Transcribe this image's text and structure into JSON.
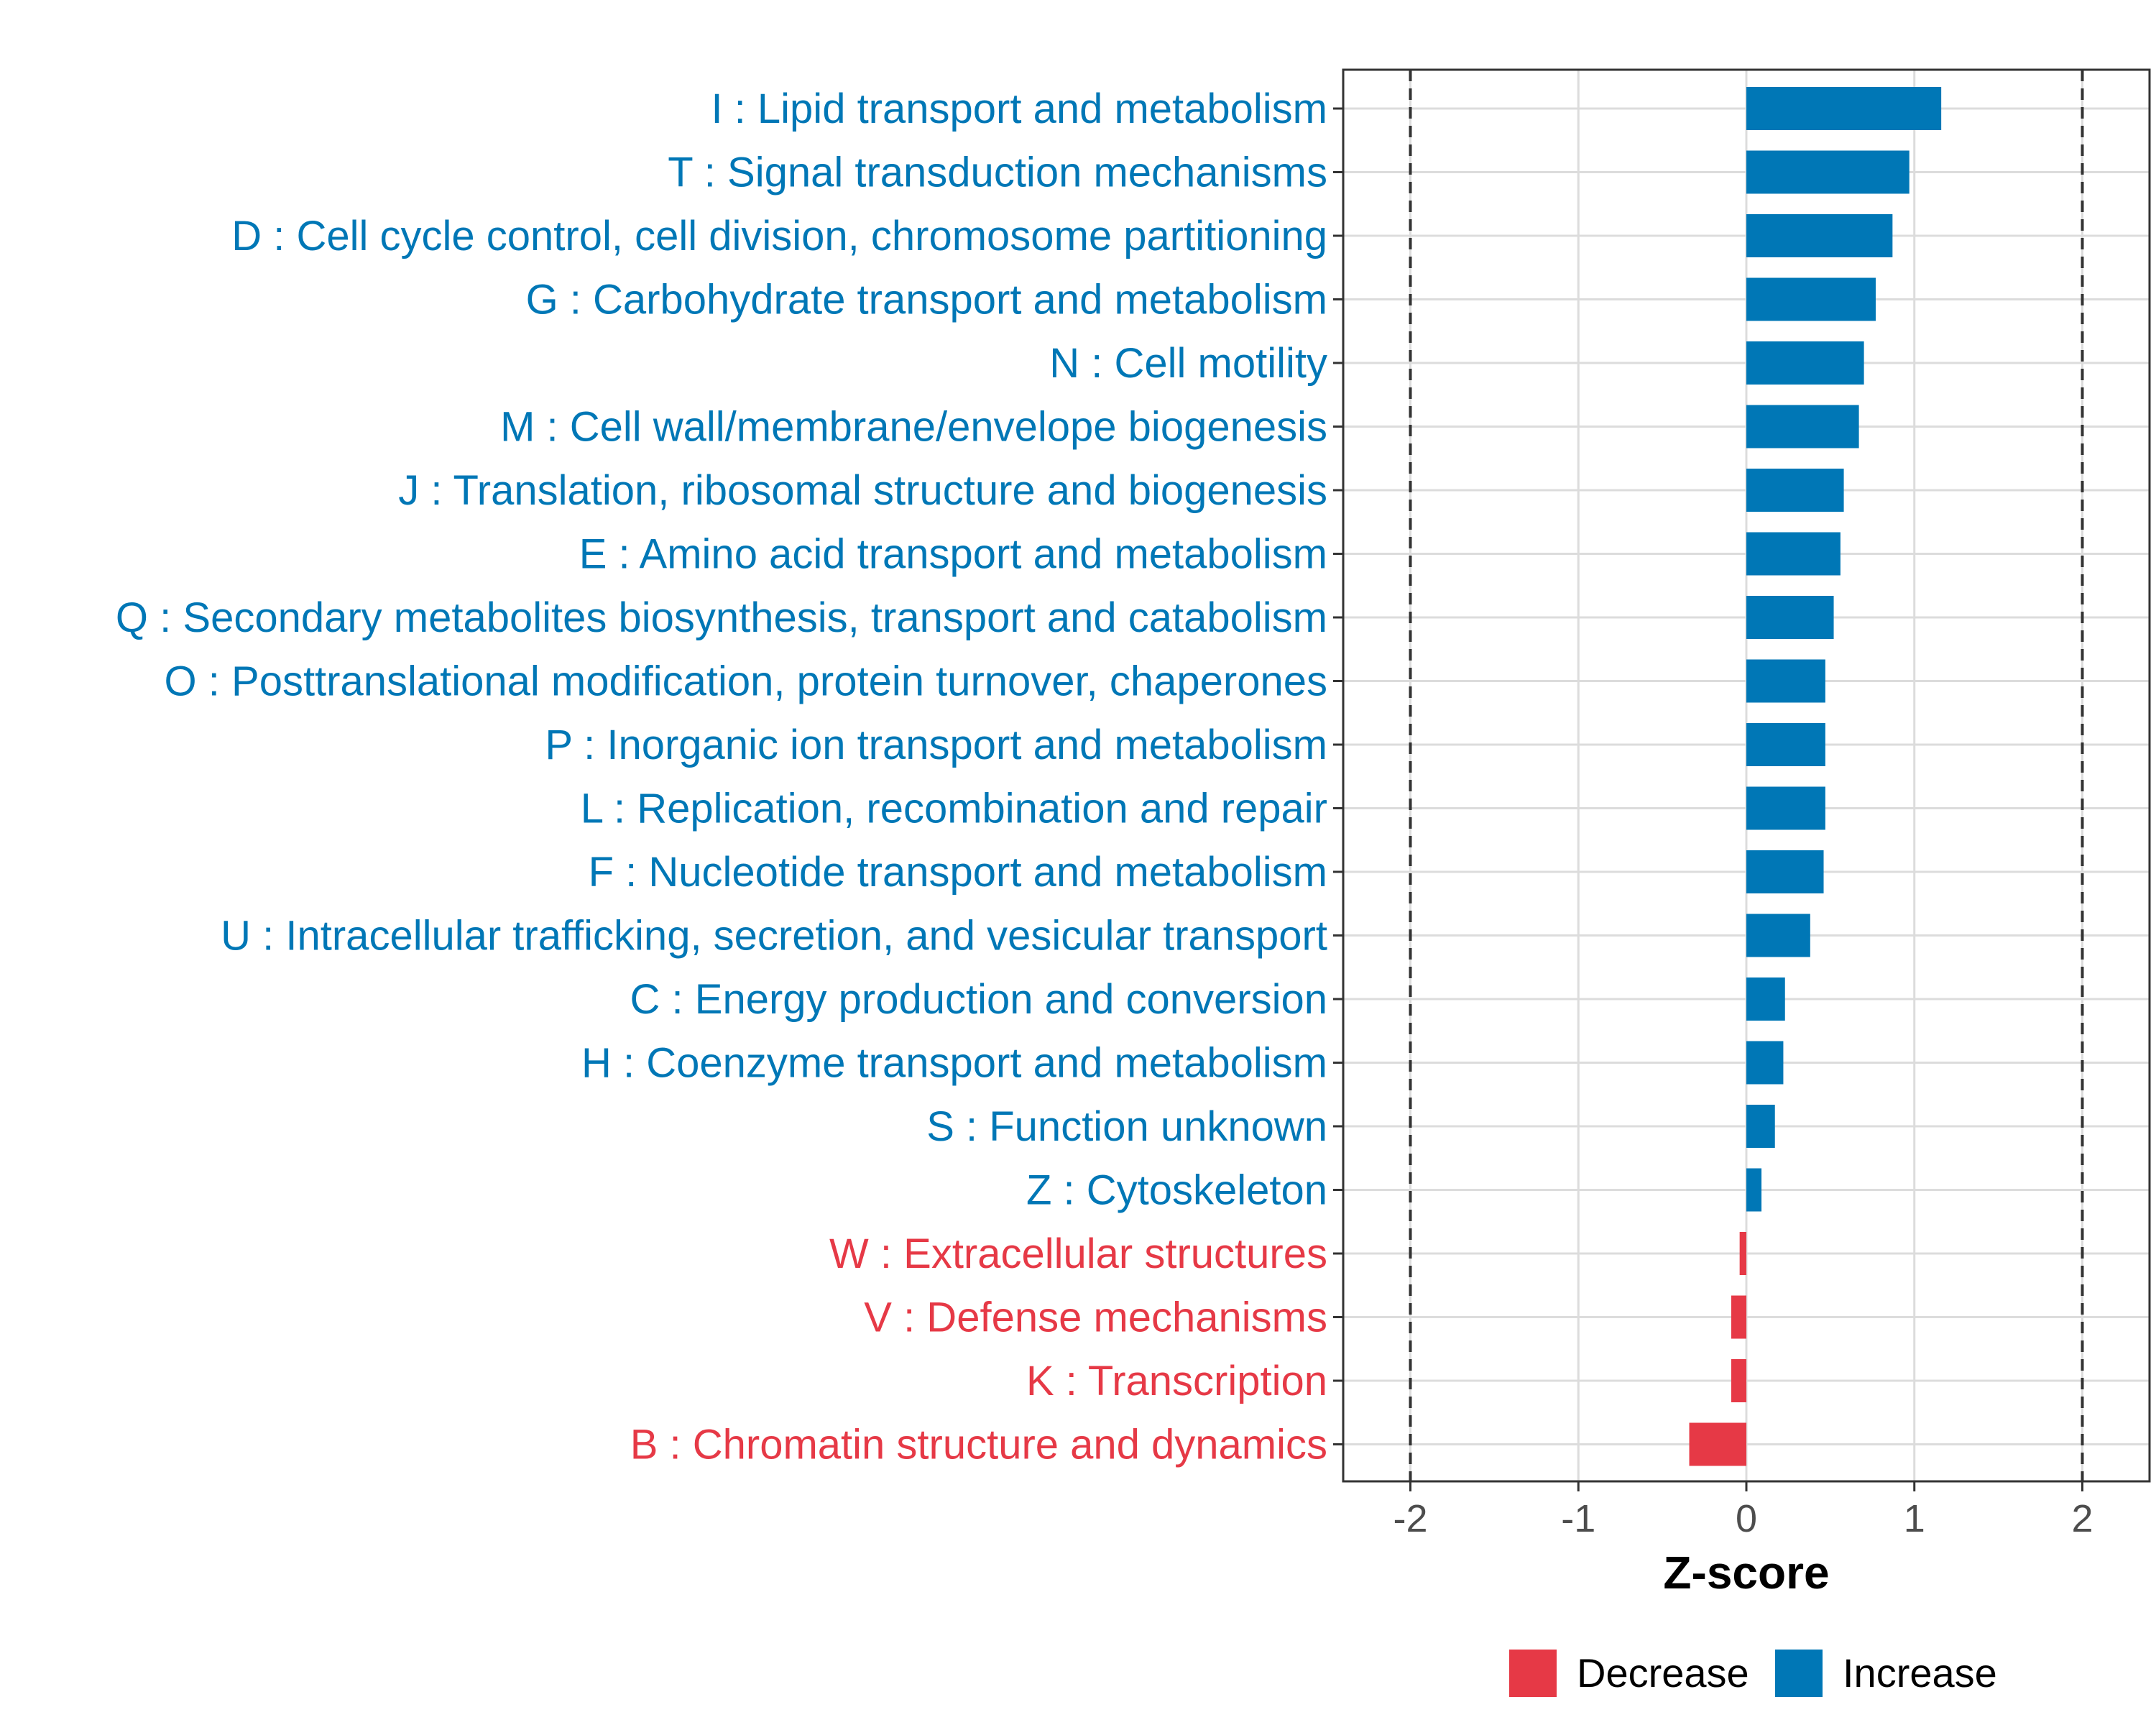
{
  "chart_data": {
    "type": "bar",
    "orientation": "horizontal",
    "title": "",
    "xlabel": "Z-score",
    "ylabel": "",
    "xlim": [
      -2.4,
      2.4
    ],
    "xticks": [
      -2,
      -1,
      0,
      1,
      2
    ],
    "xtick_labels": [
      "-2",
      "-1",
      "0",
      "1",
      "2"
    ],
    "reference_lines": [
      -2,
      2
    ],
    "grid": true,
    "legend_position": "bottom",
    "colors": {
      "Decrease": "#e63946",
      "Increase": "#0077b6"
    },
    "legend": [
      {
        "name": "Decrease",
        "color": "#e63946"
      },
      {
        "name": "Increase",
        "color": "#0077b6"
      }
    ],
    "categories": [
      "I : Lipid transport and metabolism",
      "T : Signal transduction mechanisms",
      "D : Cell cycle control, cell division, chromosome partitioning",
      "G : Carbohydrate transport and metabolism",
      "N : Cell motility",
      "M : Cell wall/membrane/envelope biogenesis",
      "J : Translation, ribosomal structure and biogenesis",
      "E : Amino acid transport and metabolism",
      "Q : Secondary metabolites biosynthesis, transport and catabolism",
      "O : Posttranslational modification, protein turnover, chaperones",
      "P : Inorganic ion transport and metabolism",
      "L : Replication, recombination and repair",
      "F : Nucleotide transport and metabolism",
      "U : Intracellular trafficking, secretion, and vesicular transport",
      "C : Energy production and conversion",
      "H : Coenzyme transport and metabolism",
      "S : Function unknown",
      "Z : Cytoskeleton",
      "W : Extracellular structures",
      "V : Defense mechanisms",
      "K : Transcription",
      "B : Chromatin structure and dynamics"
    ],
    "values": [
      1.16,
      0.97,
      0.87,
      0.77,
      0.7,
      0.67,
      0.58,
      0.56,
      0.52,
      0.47,
      0.47,
      0.47,
      0.46,
      0.38,
      0.23,
      0.22,
      0.17,
      0.09,
      -0.04,
      -0.09,
      -0.09,
      -0.34
    ],
    "groups": [
      "Increase",
      "Increase",
      "Increase",
      "Increase",
      "Increase",
      "Increase",
      "Increase",
      "Increase",
      "Increase",
      "Increase",
      "Increase",
      "Increase",
      "Increase",
      "Increase",
      "Increase",
      "Increase",
      "Increase",
      "Increase",
      "Decrease",
      "Decrease",
      "Decrease",
      "Decrease"
    ]
  }
}
